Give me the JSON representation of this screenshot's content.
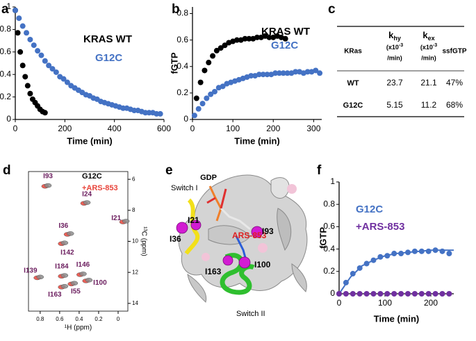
{
  "chart_data": [
    {
      "panel": "a",
      "type": "scatter",
      "xlabel": "Time (min)",
      "xlim": [
        0,
        600
      ],
      "xticks": [
        0,
        200,
        400,
        600
      ],
      "ylim": [
        0,
        1
      ],
      "yticks": [
        0,
        0.2,
        0.4,
        0.6,
        0.8,
        1
      ],
      "series": [
        {
          "name": "KRAS WT",
          "color": "#000000",
          "x": [
            0,
            10,
            20,
            30,
            40,
            50,
            60,
            70,
            80,
            90,
            100,
            110,
            120
          ],
          "values": [
            0.97,
            0.77,
            0.6,
            0.48,
            0.38,
            0.3,
            0.23,
            0.18,
            0.15,
            0.12,
            0.09,
            0.07,
            0.06
          ]
        },
        {
          "name": "G12C",
          "color": "#4472c4",
          "x": [
            0,
            15,
            30,
            45,
            60,
            75,
            90,
            105,
            120,
            135,
            150,
            165,
            180,
            195,
            210,
            225,
            240,
            255,
            270,
            285,
            300,
            315,
            330,
            345,
            360,
            375,
            390,
            405,
            420,
            435,
            450,
            465,
            480,
            495,
            510,
            525,
            540,
            555,
            570,
            585
          ],
          "values": [
            0.97,
            0.9,
            0.83,
            0.77,
            0.71,
            0.66,
            0.61,
            0.57,
            0.52,
            0.48,
            0.45,
            0.42,
            0.38,
            0.36,
            0.33,
            0.3,
            0.28,
            0.26,
            0.24,
            0.22,
            0.21,
            0.19,
            0.18,
            0.16,
            0.15,
            0.14,
            0.13,
            0.12,
            0.11,
            0.1,
            0.1,
            0.09,
            0.08,
            0.08,
            0.07,
            0.06,
            0.06,
            0.06,
            0.05,
            0.05
          ]
        }
      ]
    },
    {
      "panel": "b",
      "type": "scatter",
      "xlabel": "Time (min)",
      "ylabel": "fGTP",
      "xlim": [
        0,
        320
      ],
      "xticks": [
        0,
        100,
        200,
        300
      ],
      "ylim": [
        0,
        0.85
      ],
      "yticks": [
        0,
        0.2,
        0.4,
        0.6,
        0.8
      ],
      "series": [
        {
          "name": "KRAS WT",
          "color": "#000000",
          "x": [
            10,
            20,
            30,
            40,
            50,
            60,
            70,
            80,
            90,
            100,
            110,
            120,
            130,
            140,
            150,
            160,
            170,
            180,
            190,
            200,
            210,
            220,
            230
          ],
          "values": [
            0.16,
            0.28,
            0.37,
            0.43,
            0.48,
            0.52,
            0.54,
            0.56,
            0.58,
            0.59,
            0.6,
            0.6,
            0.61,
            0.61,
            0.61,
            0.62,
            0.62,
            0.63,
            0.62,
            0.62,
            0.63,
            0.62,
            0.61
          ]
        },
        {
          "name": "G12C",
          "color": "#4472c4",
          "x": [
            5,
            15,
            25,
            35,
            45,
            55,
            65,
            75,
            85,
            95,
            105,
            115,
            125,
            135,
            145,
            155,
            165,
            175,
            185,
            195,
            205,
            215,
            225,
            235,
            245,
            255,
            265,
            275,
            285,
            295,
            305,
            315
          ],
          "values": [
            0.03,
            0.08,
            0.12,
            0.16,
            0.19,
            0.21,
            0.24,
            0.25,
            0.27,
            0.28,
            0.29,
            0.3,
            0.31,
            0.32,
            0.33,
            0.33,
            0.34,
            0.34,
            0.34,
            0.34,
            0.35,
            0.35,
            0.35,
            0.35,
            0.35,
            0.36,
            0.36,
            0.35,
            0.36,
            0.36,
            0.37,
            0.35
          ]
        }
      ]
    },
    {
      "panel": "d",
      "type": "spectrum",
      "xlabel": "¹H (ppm)",
      "ylabel": "¹³C (ppm)",
      "y_axis_side": "right",
      "xlim": [
        0.92,
        -0.1
      ],
      "xticks": [
        0.8,
        0.6,
        0.4,
        0.2,
        0
      ],
      "ylim": [
        14.5,
        5.5
      ],
      "yticks": [
        6,
        8,
        10,
        12,
        14
      ],
      "peak_labels": [
        "I93",
        "I24",
        "I21",
        "I36",
        "I142",
        "I139",
        "I184",
        "I146",
        "I100",
        "I163",
        "I55"
      ],
      "peak_label_color": "#6b1d5e",
      "series": [
        {
          "name": "G12C",
          "color": "#8c8c8c",
          "name_color": "#000000",
          "x": [
            0.72,
            0.32,
            -0.08,
            0.49,
            0.55,
            0.8,
            0.55,
            0.36,
            0.3,
            0.55,
            0.45
          ],
          "values": [
            6.4,
            7.5,
            8.7,
            9.5,
            10.1,
            12.3,
            12.2,
            12.1,
            12.5,
            12.9,
            12.7
          ]
        },
        {
          "name": "+ARS-853",
          "color": "#e8443a",
          "x": [
            0.75,
            0.35,
            -0.05,
            0.52,
            0.58,
            0.83,
            0.58,
            0.39,
            0.33,
            0.58,
            0.48
          ],
          "values": [
            6.45,
            7.55,
            8.75,
            9.55,
            10.15,
            12.35,
            12.25,
            12.15,
            12.55,
            12.95,
            12.75
          ]
        }
      ]
    },
    {
      "panel": "f",
      "type": "scatter",
      "xlabel": "Time (min)",
      "ylabel": "fGTP",
      "xlim": [
        0,
        250
      ],
      "xticks": [
        0,
        100,
        200
      ],
      "ylim": [
        0,
        1
      ],
      "yticks": [
        0,
        0.2,
        0.4,
        0.6,
        0.8,
        1
      ],
      "series": [
        {
          "name": "G12C",
          "color": "#4472c4",
          "x": [
            0,
            15,
            30,
            45,
            60,
            75,
            90,
            105,
            120,
            135,
            150,
            165,
            180,
            195,
            210,
            225,
            240
          ],
          "values": [
            0,
            0.1,
            0.18,
            0.23,
            0.27,
            0.3,
            0.33,
            0.34,
            0.36,
            0.36,
            0.37,
            0.38,
            0.38,
            0.38,
            0.39,
            0.38,
            0.36
          ]
        },
        {
          "name": "+ARS-853",
          "color": "#7030a0",
          "x": [
            0,
            15,
            30,
            45,
            60,
            75,
            90,
            105,
            120,
            135,
            150,
            165,
            180,
            195,
            210,
            225,
            240
          ],
          "values": [
            0,
            0,
            0,
            0,
            0,
            0,
            0,
            0,
            0,
            0,
            0,
            0,
            0,
            0,
            0,
            0,
            0
          ]
        }
      ],
      "fit": {
        "color": "#4472c4",
        "x": [
          0,
          25,
          50,
          75,
          100,
          125,
          150,
          175,
          200,
          225,
          250
        ],
        "values": [
          0,
          0.15,
          0.25,
          0.3,
          0.34,
          0.36,
          0.37,
          0.38,
          0.39,
          0.39,
          0.39
        ]
      }
    }
  ],
  "table": {
    "panel": "c",
    "headers": [
      {
        "text": "KRas"
      },
      {
        "symbol": "k",
        "subscript": "hy",
        "unit": "(x10",
        "exponent": "-3",
        "unit_end": "/min)"
      },
      {
        "symbol": "k",
        "subscript": "ex",
        "unit": "(x10",
        "exponent": "-3",
        "unit_end": "/min)"
      },
      {
        "text": "ssfGTP"
      }
    ],
    "rows": [
      [
        "WT",
        "23.7",
        "21.1",
        "47%"
      ],
      [
        "G12C",
        "5.15",
        "11.2",
        "68%"
      ]
    ]
  },
  "structure": {
    "panel": "e",
    "labels": {
      "gdp": "GDP",
      "switch_1": "Switch I",
      "i21": "I21",
      "i36": "I36",
      "ligand": "ARS-853",
      "i93": "I93",
      "i163": "I163",
      "i100": "I100",
      "switch_2": "Switch II"
    }
  }
}
